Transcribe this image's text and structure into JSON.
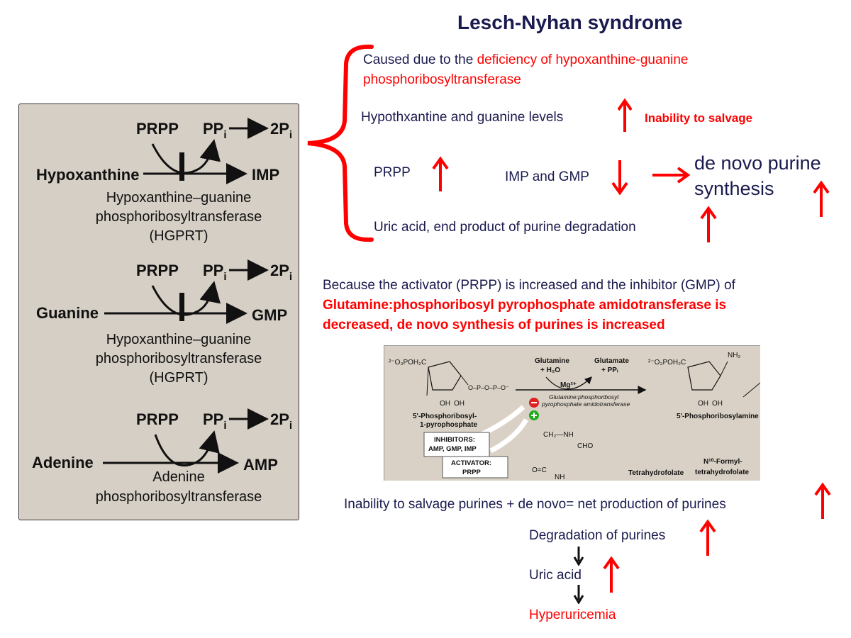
{
  "title": "Lesch-Nyhan syndrome",
  "panel": {
    "reaction1": {
      "prpp": "PRPP",
      "ppi": "PP",
      "ppi_sub": "i",
      "pi": "2P",
      "pi_sub": "i",
      "substrate": "Hypoxanthine",
      "product": "IMP",
      "enzyme_l1": "Hypoxanthine–guanine",
      "enzyme_l2": "phosphoribosyltransferase",
      "enzyme_l3": "(HGPRT)"
    },
    "reaction2": {
      "prpp": "PRPP",
      "ppi": "PP",
      "ppi_sub": "i",
      "pi": "2P",
      "pi_sub": "i",
      "substrate": "Guanine",
      "product": "GMP",
      "enzyme_l1": "Hypoxanthine–guanine",
      "enzyme_l2": "phosphoribosyltransferase",
      "enzyme_l3": "(HGPRT)"
    },
    "reaction3": {
      "prpp": "PRPP",
      "ppi": "PP",
      "ppi_sub": "i",
      "pi": "2P",
      "pi_sub": "i",
      "substrate": "Adenine",
      "product": "AMP",
      "enzyme_l1": "Adenine",
      "enzyme_l2": "phosphoribosyltransferase"
    }
  },
  "cause": {
    "prefix": "Caused due to the ",
    "highlight_l1": "deficiency of hypoxanthine-guanine",
    "highlight_l2": "phosphoribosyltransferase"
  },
  "effects": {
    "hypoxanthine": "Hypothxantine and guanine levels",
    "inability": "Inability to salvage",
    "prpp": "PRPP",
    "imp_gmp": "IMP and GMP",
    "denovo_l1": "de novo purine",
    "denovo_l2": "synthesis",
    "uric": "Uric acid, end product of purine degradation"
  },
  "because": {
    "line1": "Because  the activator (PRPP) is increased and the inhibitor (GMP) of",
    "line2": "Glutamine:phosphoribosyl pyrophosphate amidotransferase  is",
    "line3": "decreased, de novo synthesis of purines is increased"
  },
  "figure": {
    "left_group": "²⁻O₃POH₂C",
    "right_group": "²⁻O₃POH₂C",
    "glutamine": "Glutamine",
    "h2o": "+ H₂O",
    "glutamate": "Glutamate",
    "ppi": "+ PPᵢ",
    "mg": "Mg²⁺",
    "enzyme_l1": "Glutamine:phosphoribosyl",
    "enzyme_l2": "pyrophosphate amidotransferase",
    "substrate_l1": "5'-Phosphoribosyl-",
    "substrate_l2": "1-pyrophosphate",
    "product": "5'-Phosphoribosylamine",
    "nh2": "NH₂",
    "oh": "OH",
    "inhibitors_l1": "INHIBITORS:",
    "inhibitors_l2": "AMP, GMP, IMP",
    "activator_l1": "ACTIVATOR:",
    "activator_l2": "PRPP",
    "thf": "Tetrahydrofolate",
    "formyl_l1": "N¹⁰-Formyl-",
    "formyl_l2": "tetrahydrofolate",
    "ch2nh": "CH₂—NH",
    "cho": "CHO",
    "oc": "O=C",
    "nh": "NH"
  },
  "bottom": {
    "net": "Inability to salvage purines + de novo= net production of purines",
    "degradation": "Degradation of purines",
    "uric": "Uric acid",
    "hyper": "Hyperuricemia"
  },
  "colors": {
    "accent": "#ff0000",
    "text": "#1a1a4e",
    "panel": "#d6cfc5"
  }
}
